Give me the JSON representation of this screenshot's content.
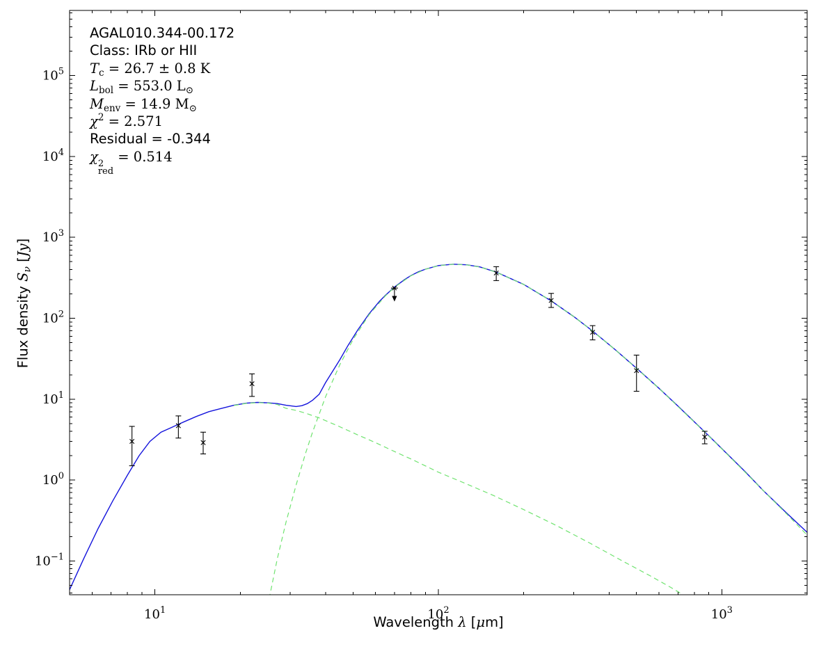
{
  "annotation": {
    "source_name": "AGAL010.344-00.172",
    "class_line": "Class: IRb or HII",
    "tc": {
      "var": "T",
      "sub": "c",
      "rest": " = 26.7 ± 0.8 K"
    },
    "lbol": {
      "var": "L",
      "sub": "bol",
      "rest": " = 553.0 L",
      "unit_sub": "⊙"
    },
    "menv": {
      "var": "M",
      "sub": "env",
      "rest": " = 14.9 M",
      "unit_sub": "⊙"
    },
    "chi2": {
      "var": "χ",
      "sup": "2",
      "rest": " = 2.571"
    },
    "residual": "Residual = -0.344",
    "chi2red": {
      "var": "χ",
      "sup": "2",
      "sub": "red",
      "rest": " = 0.514"
    }
  },
  "chart_data": {
    "type": "line",
    "title": "",
    "xlabel_parts": {
      "prefix": "Wavelength ",
      "symbol": "λ",
      "open": " [",
      "mu": "μ",
      "close": "m]"
    },
    "ylabel_parts": {
      "prefix": "Flux density ",
      "symbol": "S",
      "sub": "ν",
      "open": " [",
      "unit": "Jy",
      "close": "]"
    },
    "x_axis": {
      "scale": "log",
      "range": [
        5,
        2000
      ],
      "major_tick_exponents": [
        1,
        2,
        3
      ]
    },
    "y_axis": {
      "scale": "log",
      "range": [
        0.0381,
        640000
      ],
      "major_tick_exponents": [
        -1,
        0,
        1,
        2,
        3,
        4,
        5
      ]
    },
    "grid": false,
    "legend": null,
    "colors": {
      "model": "#1414dc",
      "components": "#70e370",
      "data": "#000000"
    },
    "series": [
      {
        "name": "model_total",
        "style": "solid",
        "color": "#1414dc",
        "points": [
          [
            5,
            0.044
          ],
          [
            5.6,
            0.105
          ],
          [
            6.3,
            0.25
          ],
          [
            7.1,
            0.55
          ],
          [
            8,
            1.15
          ],
          [
            8.8,
            2.0
          ],
          [
            9.6,
            3.0
          ],
          [
            10.5,
            3.9
          ],
          [
            11.5,
            4.5
          ],
          [
            12.6,
            5.2
          ],
          [
            14,
            6.1
          ],
          [
            15.5,
            7.0
          ],
          [
            17,
            7.6
          ],
          [
            19,
            8.4
          ],
          [
            21,
            8.9
          ],
          [
            23,
            9.1
          ],
          [
            25,
            9.0
          ],
          [
            27,
            8.8
          ],
          [
            29,
            8.4
          ],
          [
            31.5,
            8.1
          ],
          [
            33,
            8.3
          ],
          [
            34.5,
            8.8
          ],
          [
            36,
            9.7
          ],
          [
            38,
            11.5
          ],
          [
            40,
            16
          ],
          [
            42,
            21
          ],
          [
            45,
            31
          ],
          [
            48,
            46
          ],
          [
            52,
            72
          ],
          [
            57,
            114
          ],
          [
            62,
            162
          ],
          [
            65,
            192
          ],
          [
            70,
            243
          ],
          [
            76,
            300
          ],
          [
            80,
            337
          ],
          [
            85,
            375
          ],
          [
            90,
            404
          ],
          [
            100,
            448
          ],
          [
            113,
            466
          ],
          [
            126,
            458
          ],
          [
            140,
            431
          ],
          [
            160,
            372
          ],
          [
            200,
            262
          ],
          [
            250,
            164
          ],
          [
            300,
            105
          ],
          [
            350,
            69.6
          ],
          [
            420,
            41
          ],
          [
            500,
            24.1
          ],
          [
            600,
            13.6
          ],
          [
            700,
            8.2
          ],
          [
            870,
            3.95
          ],
          [
            1000,
            2.44
          ],
          [
            1200,
            1.3
          ],
          [
            1400,
            0.74
          ],
          [
            1700,
            0.385
          ],
          [
            2000,
            0.225
          ]
        ]
      },
      {
        "name": "cold_envelope_component",
        "style": "dashed",
        "color": "#70e370",
        "points": [
          [
            25.3,
            0.034
          ],
          [
            27,
            0.105
          ],
          [
            29,
            0.3
          ],
          [
            31.5,
            0.87
          ],
          [
            34,
            2.14
          ],
          [
            36,
            3.93
          ],
          [
            40,
            10.7
          ],
          [
            45,
            27
          ],
          [
            50,
            54.6
          ],
          [
            57,
            111
          ],
          [
            65,
            189
          ],
          [
            70,
            241
          ],
          [
            80,
            335
          ],
          [
            90,
            403
          ],
          [
            100,
            447
          ],
          [
            113,
            465
          ],
          [
            126,
            457
          ],
          [
            140,
            430
          ],
          [
            160,
            371
          ],
          [
            200,
            262
          ],
          [
            250,
            164
          ],
          [
            300,
            105
          ],
          [
            350,
            69.4
          ],
          [
            420,
            41
          ],
          [
            500,
            24
          ],
          [
            600,
            13.6
          ],
          [
            700,
            8.1
          ],
          [
            870,
            3.92
          ],
          [
            1000,
            2.42
          ],
          [
            1200,
            1.28
          ],
          [
            1400,
            0.74
          ],
          [
            1700,
            0.375
          ],
          [
            2000,
            0.208
          ]
        ]
      },
      {
        "name": "warm_midir_component",
        "style": "dashed",
        "color": "#70e370",
        "points": [
          [
            19,
            8.35
          ],
          [
            21,
            8.85
          ],
          [
            23,
            9.05
          ],
          [
            25,
            8.95
          ],
          [
            27,
            8.6
          ],
          [
            29,
            7.7
          ],
          [
            31.5,
            7.25
          ],
          [
            34,
            6.7
          ],
          [
            38,
            5.85
          ],
          [
            44,
            4.7
          ],
          [
            52,
            3.6
          ],
          [
            60,
            2.9
          ],
          [
            70,
            2.25
          ],
          [
            82,
            1.75
          ],
          [
            100,
            1.25
          ],
          [
            125,
            0.9
          ],
          [
            157,
            0.64
          ],
          [
            200,
            0.43
          ],
          [
            260,
            0.275
          ],
          [
            340,
            0.168
          ],
          [
            450,
            0.098
          ],
          [
            560,
            0.065
          ],
          [
            660,
            0.047
          ],
          [
            730,
            0.038
          ]
        ]
      }
    ],
    "data_points": [
      {
        "wavelength": 8.3,
        "flux": 3.0,
        "flux_lo": 1.5,
        "flux_hi": 4.6
      },
      {
        "wavelength": 12.1,
        "flux": 4.7,
        "flux_lo": 3.3,
        "flux_hi": 6.2
      },
      {
        "wavelength": 14.8,
        "flux": 2.9,
        "flux_lo": 2.1,
        "flux_hi": 3.9
      },
      {
        "wavelength": 22,
        "flux": 15.5,
        "flux_lo": 10.8,
        "flux_hi": 20.5
      },
      {
        "wavelength": 160,
        "flux": 363,
        "flux_lo": 292,
        "flux_hi": 434
      },
      {
        "wavelength": 250,
        "flux": 166,
        "flux_lo": 136,
        "flux_hi": 203
      },
      {
        "wavelength": 350,
        "flux": 67,
        "flux_lo": 54,
        "flux_hi": 81
      },
      {
        "wavelength": 500,
        "flux": 22.5,
        "flux_lo": 12.5,
        "flux_hi": 35
      },
      {
        "wavelength": 870,
        "flux": 3.4,
        "flux_lo": 2.8,
        "flux_hi": 4.0
      }
    ],
    "upper_limit": {
      "wavelength": 70,
      "flux": 236,
      "arrow_to": 185
    },
    "marker": "x"
  }
}
